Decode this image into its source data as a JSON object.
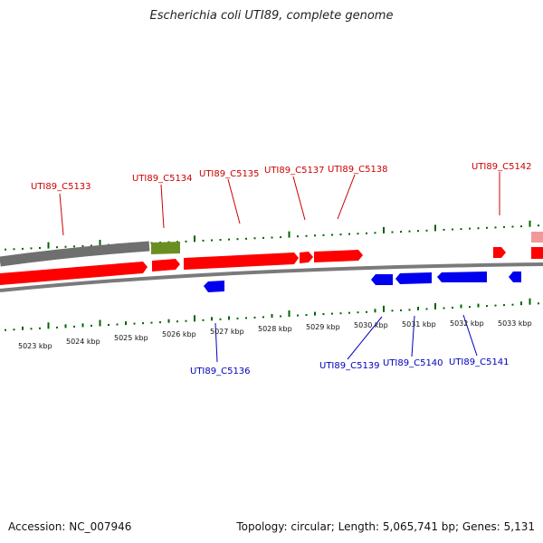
{
  "title": "Escherichia coli UTI89, complete genome",
  "footer": {
    "accession": "Accession: NC_007946",
    "summary": "Topology: circular; Length: 5,065,741 bp; Genes: 5,131"
  },
  "colors": {
    "forward_label": "#cc0000",
    "reverse_label": "#0000bb",
    "cds": "#ff0000",
    "cds_light": "#f29a9a",
    "reverse_cds": "#0000ee",
    "rna": "#6b8e23",
    "backbone": "#808080",
    "tick": "#006400"
  },
  "kbp_labels": [
    "5023 kbp",
    "5024 kbp",
    "5025 kbp",
    "5026 kbp",
    "5027 kbp",
    "5028 kbp",
    "5029 kbp",
    "5030 kbp",
    "5031 kbp",
    "5032 kbp",
    "5033 kbp"
  ],
  "forward_gene_labels": [
    "UTI89_C5133",
    "UTI89_C5134",
    "UTI89_C5135",
    "UTI89_C5137",
    "UTI89_C5138",
    "UTI89_C5142"
  ],
  "reverse_gene_labels": [
    "UTI89_C5136",
    "UTI89_C5139",
    "UTI89_C5140",
    "UTI89_C5141"
  ]
}
